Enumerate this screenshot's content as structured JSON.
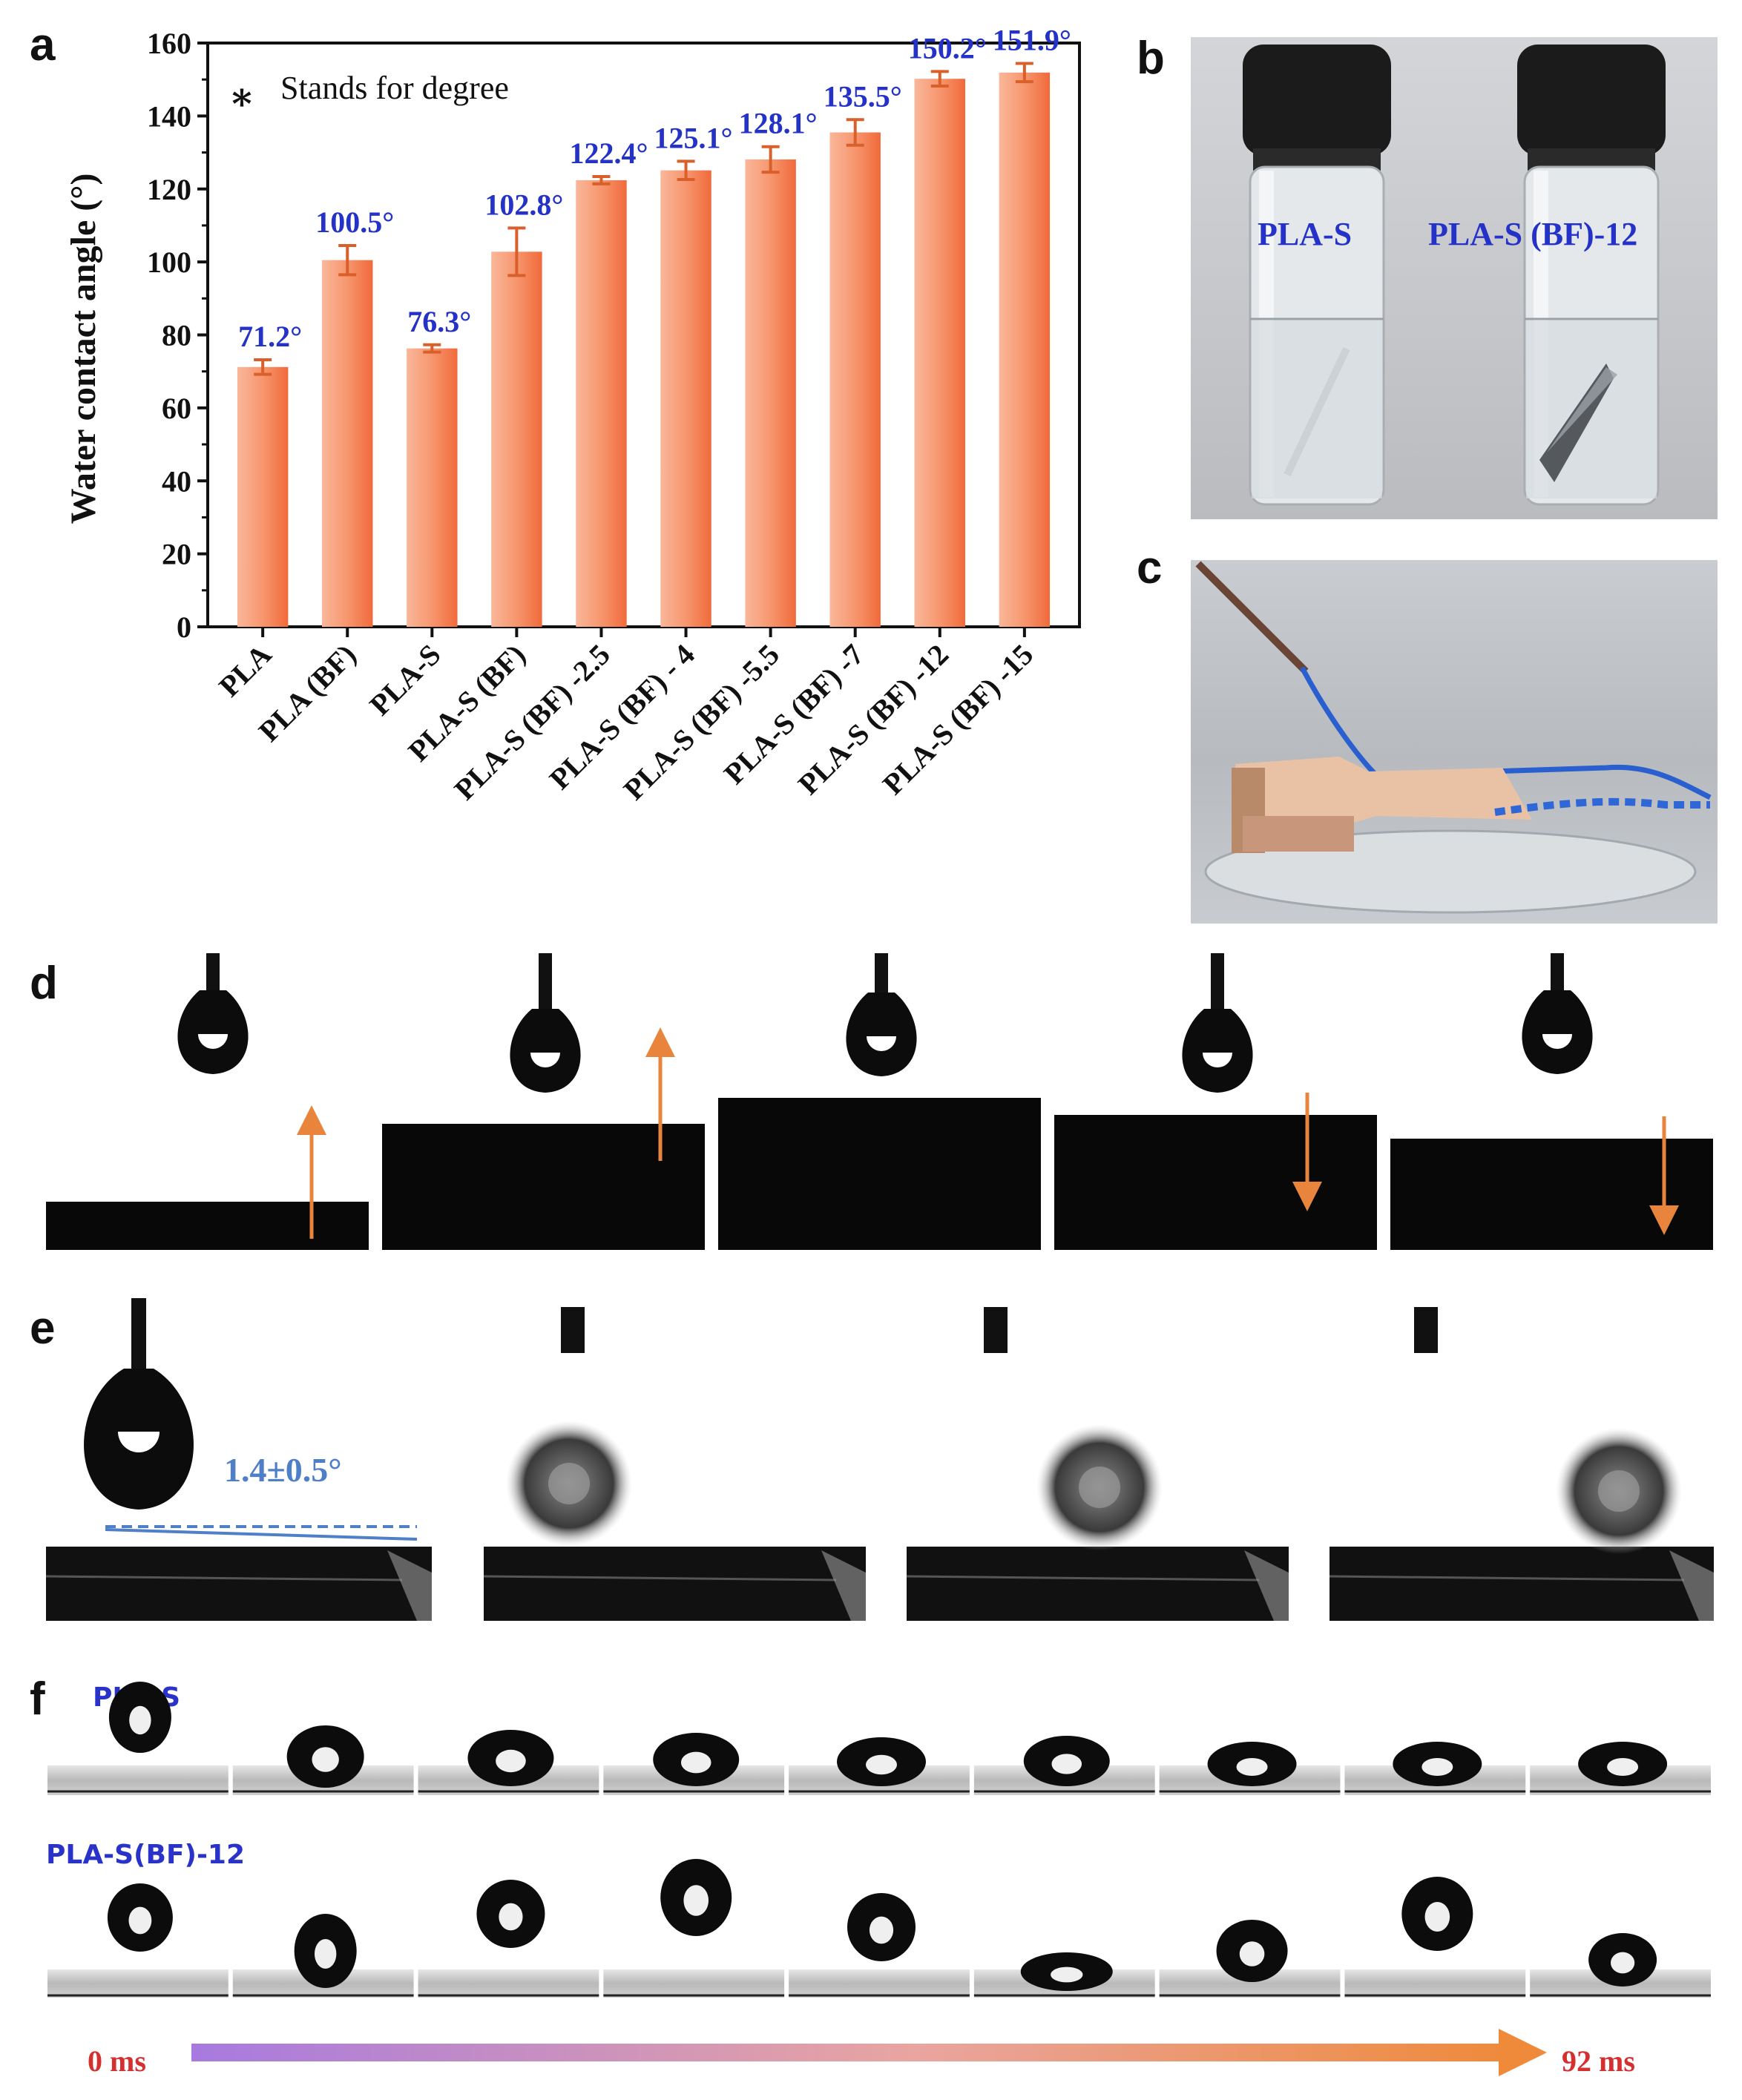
{
  "panels": {
    "a": "a",
    "b": "b",
    "c": "c",
    "d": "d",
    "e": "e",
    "f": "f"
  },
  "chart_data": {
    "type": "bar",
    "categories": [
      "PLA",
      "PLA (BF)",
      "PLA-S",
      "PLA-S (BF)",
      "PLA-S (BF) -2.5",
      "PLA-S (BF) - 4",
      "PLA-S (BF) -5.5",
      "PLA-S (BF) -7",
      "PLA-S (BF) -12",
      "PLA-S (BF) -15"
    ],
    "values": [
      71.2,
      100.5,
      76.3,
      102.8,
      122.4,
      125.1,
      128.1,
      135.5,
      150.2,
      151.9
    ],
    "errors": [
      2.0,
      4.0,
      1.0,
      6.5,
      1.0,
      2.5,
      3.5,
      3.5,
      2.0,
      2.5
    ],
    "data_labels": [
      "71.2°",
      "100.5°",
      "76.3°",
      "102.8°",
      "122.4°",
      "125.1°",
      "128.1°",
      "135.5°",
      "150.2°",
      "151.9°"
    ],
    "ylabel": "Water contact angle (°)",
    "ylim": [
      0,
      160
    ],
    "yticks": [
      0,
      20,
      40,
      60,
      80,
      100,
      120,
      140,
      160
    ],
    "annotation_star": "∗",
    "annotation": "Stands for degree",
    "bar_color": "#f47c4f",
    "label_color": "#2432c8"
  },
  "panel_b": {
    "left_label": "PLA-S",
    "right_label": "PLA-S (BF)-12"
  },
  "panel_e": {
    "angle_label": "1.4±0.5°"
  },
  "panel_f": {
    "row1_label": "PLA-S",
    "row2_label": "PLA-S(BF)-12",
    "start_time": "0 ms",
    "end_time": "92 ms"
  }
}
